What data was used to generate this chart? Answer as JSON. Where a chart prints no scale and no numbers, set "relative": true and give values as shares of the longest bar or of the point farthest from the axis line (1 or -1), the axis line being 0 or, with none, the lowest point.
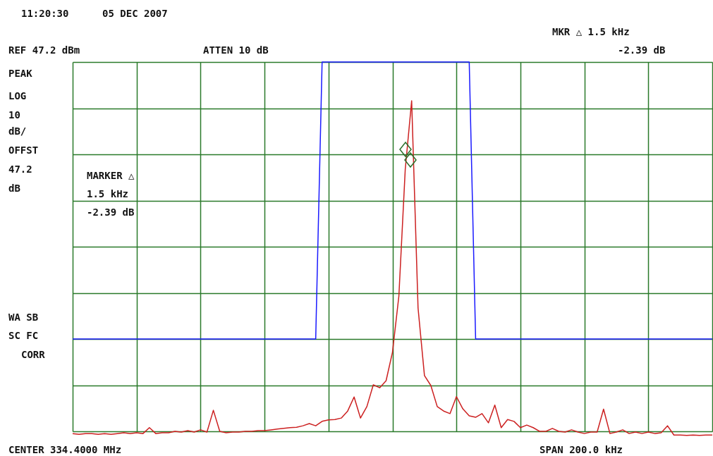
{
  "chart_data": {
    "type": "line",
    "relative": true,
    "grid": true,
    "categories": [
      null,
      null,
      null,
      null,
      null,
      null,
      null,
      null,
      null,
      null,
      null,
      null,
      null,
      null,
      null,
      null,
      null,
      null,
      null,
      null,
      null,
      null,
      null,
      null,
      null,
      null,
      null,
      null,
      null,
      null,
      null,
      null,
      null,
      null,
      null,
      null,
      null,
      null,
      null,
      null,
      null,
      null,
      null,
      null,
      null,
      null,
      null,
      null,
      null,
      null,
      null,
      null,
      null,
      null,
      null,
      null,
      null,
      null,
      null,
      null,
      null,
      null,
      null,
      null,
      null,
      null,
      null,
      null,
      null,
      null,
      null,
      null,
      null,
      null,
      null,
      null,
      null,
      null,
      null,
      null,
      null,
      null,
      null,
      null,
      null,
      null,
      null,
      null,
      null,
      null,
      null,
      null,
      null,
      null,
      null,
      null,
      null,
      null,
      null,
      null,
      null
    ],
    "series": [
      {
        "color": "#1a1aff",
        "values": [
          0.25,
          0.25,
          0.25,
          0.25,
          0.25,
          0.25,
          0.25,
          0.25,
          0.25,
          0.25,
          0.25,
          0.25,
          0.25,
          0.25,
          0.25,
          0.25,
          0.25,
          0.25,
          0.25,
          0.25,
          0.25,
          0.25,
          0.25,
          0.25,
          0.25,
          0.25,
          0.25,
          0.25,
          0.25,
          0.25,
          0.25,
          0.25,
          0.25,
          0.25,
          0.25,
          0.25,
          0.25,
          0.25,
          0.25,
          1,
          1,
          1,
          1,
          1,
          1,
          1,
          1,
          1,
          1,
          1,
          1,
          1,
          1,
          1,
          1,
          1,
          1,
          1,
          1,
          1,
          1,
          1,
          1,
          0.25,
          0.25,
          0.25,
          0.25,
          0.25,
          0.25,
          0.25,
          0.25,
          0.25,
          0.25,
          0.25,
          0.25,
          0.25,
          0.25,
          0.25,
          0.25,
          0.25,
          0.25,
          0.25,
          0.25,
          0.25,
          0.25,
          0.25,
          0.25,
          0.25,
          0.25,
          0.25,
          0.25,
          0.25,
          0.25,
          0.25,
          0.25,
          0.25,
          0.25,
          0.25,
          0.25,
          0.25,
          0.25
        ]
      },
      {
        "color": "#cc2020",
        "values": [
          -0.006,
          -0.008,
          -0.006,
          -0.006,
          -0.008,
          -0.006,
          -0.008,
          -0.006,
          -0.004,
          -0.006,
          -0.004,
          -0.006,
          0.01,
          -0.006,
          -0.004,
          -0.004,
          0,
          -0.002,
          0.002,
          -0.002,
          0.004,
          -0.002,
          0.057,
          0,
          -0.004,
          -0.002,
          -0.002,
          0,
          0,
          0.002,
          0.002,
          0.004,
          0.006,
          0.008,
          0.01,
          0.011,
          0.015,
          0.021,
          0.015,
          0.027,
          0.031,
          0.032,
          0.036,
          0.055,
          0.093,
          0.036,
          0.067,
          0.126,
          0.118,
          0.137,
          0.214,
          0.366,
          0.71,
          0.895,
          0.334,
          0.151,
          0.124,
          0.067,
          0.055,
          0.048,
          0.094,
          0.061,
          0.042,
          0.038,
          0.048,
          0.023,
          0.071,
          0.01,
          0.032,
          0.027,
          0.01,
          0.017,
          0.01,
          0,
          0,
          0.008,
          0,
          -0.002,
          0.004,
          -0.002,
          -0.006,
          -0.002,
          -0.002,
          0.06,
          -0.006,
          -0.002,
          0.004,
          -0.006,
          -0.002,
          -0.006,
          -0.002,
          -0.006,
          -0.004,
          0.015,
          -0.01,
          -0.01,
          -0.011,
          -0.01,
          -0.011,
          -0.01,
          -0.01
        ]
      }
    ],
    "annotations": [
      "11:20:30",
      "05 DEC 2007",
      "MKR △ 1.5 kHz",
      "REF 47.2 dBm",
      "ATTEN 10 dB",
      "-2.39 dB",
      "PEAK",
      "LOG",
      "10",
      "dB/",
      "OFFST",
      "47.2",
      "dB",
      "MARKER △",
      "1.5 kHz",
      "-2.39 dB",
      "WA SB",
      "SC FC",
      "CORR",
      "CENTER 334.4000 MHz",
      "SPAN 200.0 kHz"
    ]
  }
}
